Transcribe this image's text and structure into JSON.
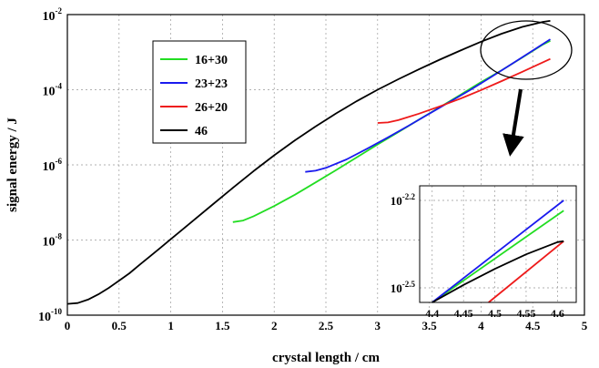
{
  "chart_data": [
    {
      "type": "line",
      "title": "",
      "xlabel": "crystal length / cm",
      "ylabel": "signal energy / J",
      "xlim": [
        0,
        5
      ],
      "ylim": [
        1e-10,
        0.01
      ],
      "y_scale": "log",
      "grid": true,
      "legend_placement": "top-left",
      "x_ticks": [
        "0",
        "0.5",
        "1",
        "1.5",
        "2",
        "2.5",
        "3",
        "3.5",
        "4",
        "4.5",
        "5"
      ],
      "y_ticks": [
        {
          "base": "10",
          "exp": "-10"
        },
        {
          "base": "10",
          "exp": "-8"
        },
        {
          "base": "10",
          "exp": "-6"
        },
        {
          "base": "10",
          "exp": "-4"
        },
        {
          "base": "10",
          "exp": "-2"
        }
      ],
      "series": [
        {
          "name": "16+30",
          "color": "#22dd22",
          "x": [
            1.6,
            1.7,
            1.8,
            2.0,
            2.2,
            2.4,
            2.6,
            2.8,
            3.0,
            3.2,
            3.4,
            3.6,
            3.8,
            4.0,
            4.2,
            4.4,
            4.6,
            4.67
          ],
          "y": [
            3e-08,
            3.3e-08,
            4.3e-08,
            8e-08,
            1.6e-07,
            3.4e-07,
            7.3e-07,
            1.6e-06,
            3.5e-06,
            7.4e-06,
            1.6e-05,
            3.4e-05,
            7.3e-05,
            0.00016,
            0.00033,
            0.00072,
            0.0016,
            0.002
          ]
        },
        {
          "name": "23+23",
          "color": "#1a1aee",
          "x": [
            2.3,
            2.4,
            2.5,
            2.7,
            2.9,
            3.1,
            3.3,
            3.5,
            3.7,
            3.9,
            4.1,
            4.3,
            4.5,
            4.67
          ],
          "y": [
            6.5e-07,
            7e-07,
            8.3e-07,
            1.4e-06,
            2.7e-06,
            5.4e-06,
            1.1e-05,
            2.3e-05,
            4.8e-05,
            0.0001,
            0.00022,
            0.00049,
            0.0011,
            0.0022
          ]
        },
        {
          "name": "26+20",
          "color": "#ee1a1a",
          "x": [
            3.0,
            3.1,
            3.2,
            3.4,
            3.6,
            3.8,
            4.0,
            4.2,
            4.4,
            4.6,
            4.67
          ],
          "y": [
            1.3e-05,
            1.35e-05,
            1.55e-05,
            2.3e-05,
            3.6e-05,
            5.8e-05,
            9.8e-05,
            0.00017,
            0.0003,
            0.00054,
            0.00066
          ],
          "color_note": ""
        },
        {
          "name": "46",
          "color": "#000000",
          "x": [
            0,
            0.1,
            0.2,
            0.3,
            0.4,
            0.5,
            0.6,
            0.7,
            0.8,
            0.9,
            1.0,
            1.2,
            1.4,
            1.6,
            1.8,
            2.0,
            2.2,
            2.4,
            2.6,
            2.8,
            3.0,
            3.2,
            3.4,
            3.6,
            3.8,
            4.0,
            4.2,
            4.4,
            4.6,
            4.67
          ],
          "y": [
            2e-10,
            2.1e-10,
            2.6e-10,
            3.6e-10,
            5.3e-10,
            8.3e-10,
            1.3e-09,
            2.2e-09,
            3.7e-09,
            6.2e-09,
            1.05e-08,
            3e-08,
            8.6e-08,
            2.45e-07,
            6.8e-07,
            1.8e-06,
            4.5e-06,
            1.05e-05,
            2.35e-05,
            5e-05,
            0.0001,
            0.00019,
            0.00035,
            0.00063,
            0.0011,
            0.0019,
            0.0031,
            0.0047,
            0.0064,
            0.0068
          ]
        }
      ]
    },
    {
      "type": "line",
      "title": "",
      "xlabel": "",
      "ylabel": "",
      "xlim": [
        4.38,
        4.63
      ],
      "ylim": [
        -2.55,
        -2.15
      ],
      "y_scale": "log",
      "grid": true,
      "x_ticks": [
        "4.4",
        "4.45",
        "4.5",
        "4.55",
        "4.6"
      ],
      "y_ticks": [
        {
          "base": "10",
          "exp": "-2.2",
          "value": -2.2
        },
        {
          "base": "10",
          "exp": "-2.5",
          "value": -2.5
        }
      ],
      "series": [
        {
          "name": "16+30",
          "color": "#22dd22",
          "x": [
            4.4,
            4.61
          ],
          "y": [
            -2.55,
            -2.235
          ]
        },
        {
          "name": "23+23",
          "color": "#1a1aee",
          "x": [
            4.4,
            4.61
          ],
          "y": [
            -2.55,
            -2.2
          ]
        },
        {
          "name": "26+20",
          "color": "#ee1a1a",
          "x": [
            4.49,
            4.61
          ],
          "y": [
            -2.55,
            -2.34
          ]
        },
        {
          "name": "46",
          "color": "#000000",
          "x": [
            4.4,
            4.45,
            4.5,
            4.55,
            4.6,
            4.61
          ],
          "y": [
            -2.55,
            -2.49,
            -2.435,
            -2.385,
            -2.343,
            -2.34
          ]
        }
      ]
    }
  ]
}
